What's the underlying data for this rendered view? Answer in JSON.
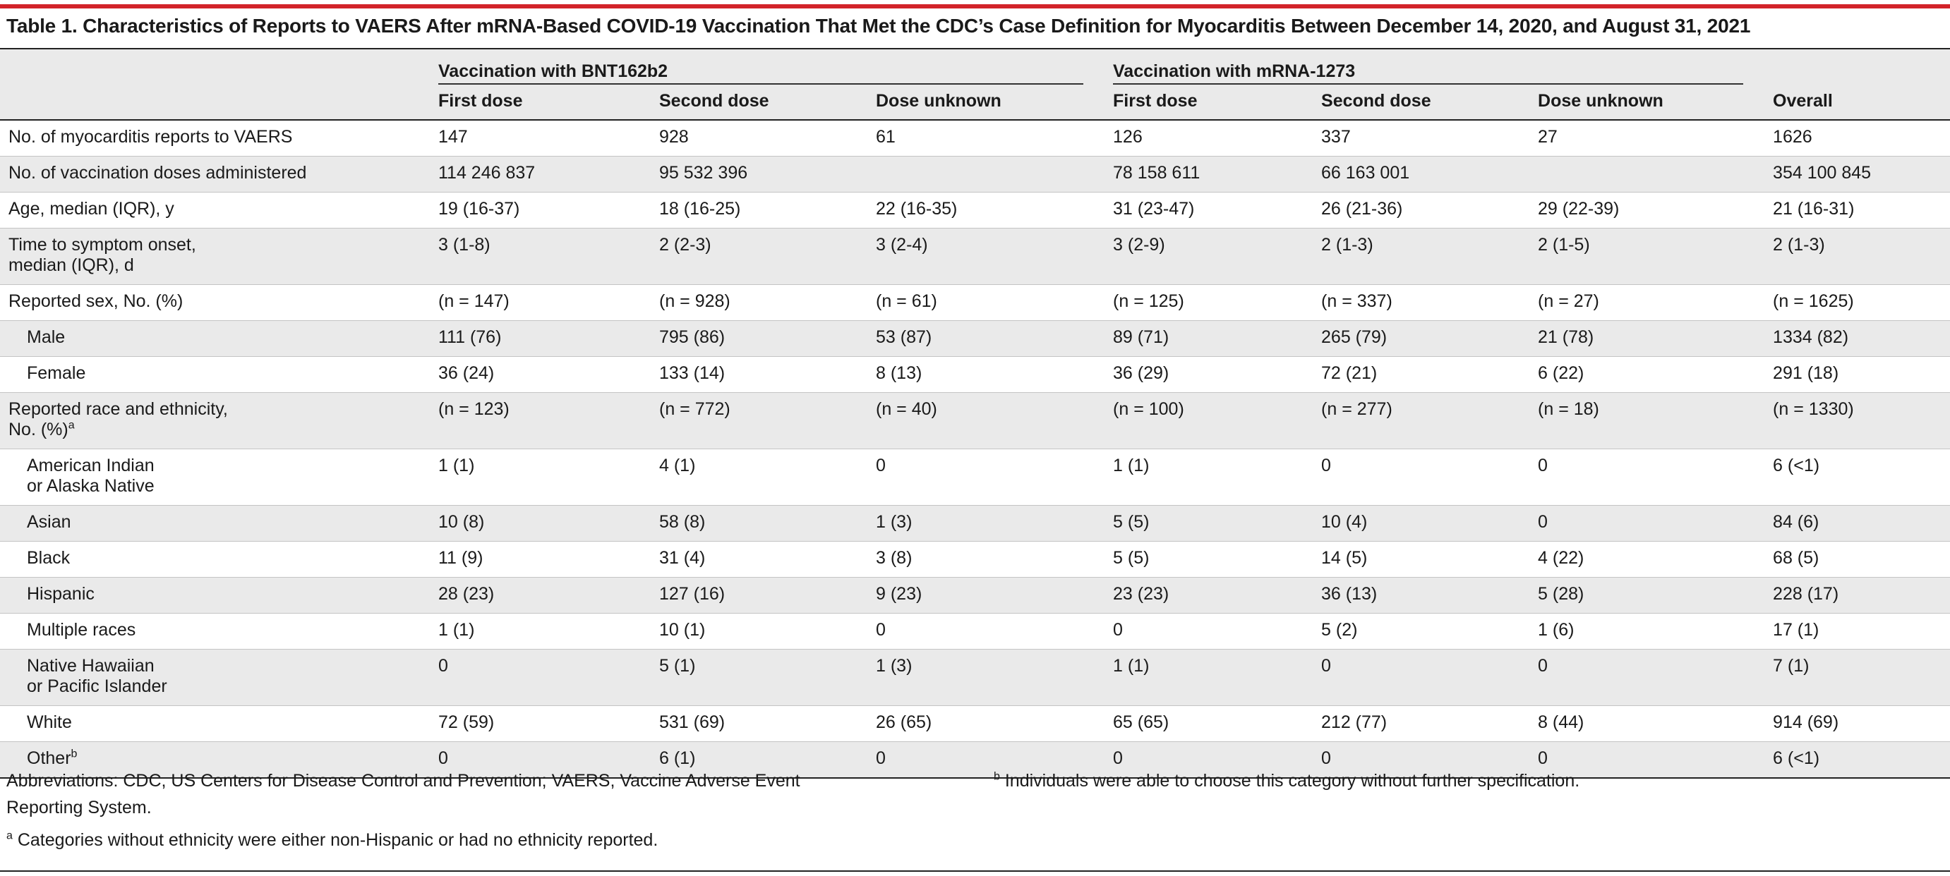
{
  "title": "Table 1. Characteristics of Reports to VAERS After mRNA-Based COVID-19 Vaccination That Met the CDC’s Case Definition for Myocarditis Between December 14, 2020, and August 31, 2021",
  "header": {
    "group1": "Vaccination with BNT162b2",
    "group2": "Vaccination with mRNA-1273",
    "subcols": [
      "First dose",
      "Second dose",
      "Dose unknown",
      "First dose",
      "Second dose",
      "Dose unknown"
    ],
    "overall": "Overall"
  },
  "rows": [
    {
      "label": "No. of myocarditis reports to VAERS",
      "sub": false,
      "alt": false,
      "cells": [
        "147",
        "928",
        "61",
        "126",
        "337",
        "27",
        "1626"
      ]
    },
    {
      "label": "No. of vaccination doses administered",
      "sub": false,
      "alt": true,
      "cells": [
        "114 246 837",
        "95 532 396",
        "",
        "78 158 611",
        "66 163 001",
        "",
        "354 100 845"
      ]
    },
    {
      "label": "Age, median (IQR), y",
      "sub": false,
      "alt": false,
      "cells": [
        "19 (16-37)",
        "18 (16-25)",
        "22 (16-35)",
        "31 (23-47)",
        "26 (21-36)",
        "29 (22-39)",
        "21 (16-31)"
      ]
    },
    {
      "label": "Time to symptom onset,",
      "label2": "median (IQR), d",
      "sub": false,
      "alt": true,
      "cells": [
        "3 (1-8)",
        "2 (2-3)",
        "3 (2-4)",
        "3 (2-9)",
        "2 (1-3)",
        "2 (1-5)",
        "2 (1-3)"
      ]
    },
    {
      "label": "Reported sex, No. (%)",
      "sub": false,
      "alt": false,
      "cells": [
        "(n = 147)",
        "(n = 928)",
        "(n = 61)",
        "(n = 125)",
        "(n = 337)",
        "(n = 27)",
        "(n = 1625)"
      ]
    },
    {
      "label": "Male",
      "sub": true,
      "alt": true,
      "cells": [
        "111 (76)",
        "795 (86)",
        "53 (87)",
        "89 (71)",
        "265 (79)",
        "21 (78)",
        "1334 (82)"
      ]
    },
    {
      "label": "Female",
      "sub": true,
      "alt": false,
      "cells": [
        "36 (24)",
        "133 (14)",
        "8 (13)",
        "36 (29)",
        "72 (21)",
        "6 (22)",
        "291 (18)"
      ]
    },
    {
      "label": "Reported race and ethnicity,",
      "label2": "No. (%)",
      "sup": "a",
      "sub": false,
      "alt": true,
      "cells": [
        "(n = 123)",
        "(n = 772)",
        "(n = 40)",
        "(n = 100)",
        "(n = 277)",
        "(n = 18)",
        "(n = 1330)"
      ]
    },
    {
      "label": "American Indian",
      "label2": "or Alaska Native",
      "sub": true,
      "alt": false,
      "cells": [
        "1 (1)",
        "4 (1)",
        "0",
        "1 (1)",
        "0",
        "0",
        "6 (<1)"
      ]
    },
    {
      "label": "Asian",
      "sub": true,
      "alt": true,
      "cells": [
        "10 (8)",
        "58 (8)",
        "1 (3)",
        "5 (5)",
        "10 (4)",
        "0",
        "84 (6)"
      ]
    },
    {
      "label": "Black",
      "sub": true,
      "alt": false,
      "cells": [
        "11 (9)",
        "31 (4)",
        "3 (8)",
        "5 (5)",
        "14 (5)",
        "4 (22)",
        "68 (5)"
      ]
    },
    {
      "label": "Hispanic",
      "sub": true,
      "alt": true,
      "cells": [
        "28 (23)",
        "127 (16)",
        "9 (23)",
        "23 (23)",
        "36 (13)",
        "5 (28)",
        "228 (17)"
      ]
    },
    {
      "label": "Multiple races",
      "sub": true,
      "alt": false,
      "cells": [
        "1 (1)",
        "10 (1)",
        "0",
        "0",
        "5 (2)",
        "1 (6)",
        "17 (1)"
      ]
    },
    {
      "label": "Native Hawaiian",
      "label2": "or Pacific Islander",
      "sub": true,
      "alt": true,
      "cells": [
        "0",
        "5 (1)",
        "1 (3)",
        "1 (1)",
        "0",
        "0",
        "7 (1)"
      ]
    },
    {
      "label": "White",
      "sub": true,
      "alt": false,
      "cells": [
        "72 (59)",
        "531 (69)",
        "26 (65)",
        "65 (65)",
        "212 (77)",
        "8 (44)",
        "914 (69)"
      ]
    },
    {
      "label": "Other",
      "sup": "b",
      "sub": true,
      "alt": true,
      "cells": [
        "0",
        "6 (1)",
        "0",
        "0",
        "0",
        "0",
        "6 (<1)"
      ]
    }
  ],
  "footnotes": {
    "abbrev_line1": "Abbreviations: CDC, US Centers for Disease Control and Prevention; VAERS, Vaccine Adverse Event",
    "abbrev_line2": "Reporting System.",
    "a_mark": "a",
    "a_text": " Categories without ethnicity were either non-Hispanic or had no ethnicity reported.",
    "b_mark": "b",
    "b_text": " Individuals were able to choose this category without further specification."
  }
}
